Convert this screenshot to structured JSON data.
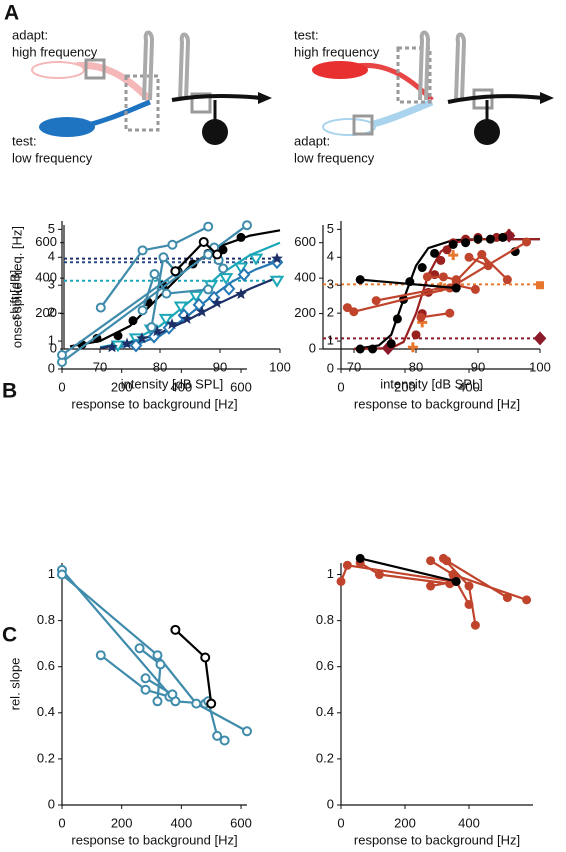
{
  "panel_labels": [
    "A",
    "B",
    "C"
  ],
  "diagrams": [
    {
      "labels": [
        "adapt:",
        "high frequency",
        "test:",
        "low frequency"
      ]
    },
    {
      "labels": [
        "test:",
        "high frequency",
        "adapt:",
        "low frequency"
      ]
    }
  ],
  "chart_data": [
    {
      "type": "line",
      "xlabel": "intensity [dB SPL]",
      "ylabel": "onset spike freq. [Hz]",
      "xlim": [
        64,
        100
      ],
      "ylim": [
        0,
        700
      ],
      "xticks": [
        70,
        80,
        90,
        100
      ],
      "yticks": [
        0,
        200,
        400,
        600
      ],
      "series": [
        {
          "color": "#1c2f66",
          "line": true,
          "dash": true,
          "x": [
            64,
            100
          ],
          "values": [
            510,
            510
          ]
        },
        {
          "color": "#2a4a8a",
          "line": true,
          "dash": true,
          "x": [
            64,
            100
          ],
          "values": [
            490,
            490
          ]
        },
        {
          "color": "#1aa7b8",
          "line": true,
          "dash": true,
          "x": [
            64,
            100
          ],
          "values": [
            385,
            385
          ]
        },
        {
          "color": "#000000",
          "line": true,
          "x": [
            65,
            70,
            75,
            80,
            85,
            90,
            95,
            100
          ],
          "values": [
            15,
            45,
            130,
            300,
            470,
            580,
            640,
            670
          ]
        },
        {
          "color": "#1aa7b8",
          "line": true,
          "x": [
            70,
            75,
            80,
            85,
            90,
            95,
            100
          ],
          "values": [
            10,
            40,
            130,
            270,
            420,
            530,
            600
          ]
        },
        {
          "color": "#2478b4",
          "line": true,
          "x": [
            72,
            76,
            80,
            84,
            88,
            92,
            96,
            100
          ],
          "values": [
            5,
            25,
            75,
            170,
            280,
            380,
            450,
            500
          ]
        },
        {
          "color": "#1c2f66",
          "line": true,
          "x": [
            70,
            75,
            80,
            85,
            90,
            95,
            100
          ],
          "values": [
            5,
            35,
            90,
            170,
            260,
            340,
            410
          ]
        },
        {
          "color": "#000000",
          "marker": "circle",
          "x": [
            67,
            69.5,
            73,
            75.5,
            78,
            80.5,
            83,
            85.5,
            88,
            90.5,
            93.5
          ],
          "values": [
            25,
            60,
            75,
            160,
            265,
            360,
            440,
            480,
            540,
            560,
            630
          ]
        },
        {
          "color": "#1aa7b8",
          "marker": "open-triangle",
          "x": [
            73,
            76,
            78.5,
            81,
            83.5,
            86,
            88.5,
            91,
            93.5,
            96,
            99.5
          ],
          "values": [
            20,
            60,
            110,
            170,
            240,
            300,
            360,
            400,
            460,
            510,
            385
          ]
        },
        {
          "color": "#2478b4",
          "marker": "open-diamond",
          "x": [
            76,
            79,
            81.5,
            84,
            86.5,
            89,
            91.5,
            94,
            99.5
          ],
          "values": [
            20,
            70,
            120,
            190,
            250,
            290,
            340,
            420,
            490
          ]
        },
        {
          "color": "#1c2f66",
          "marker": "star",
          "x": [
            72,
            74.5,
            77,
            79.5,
            82,
            84.5,
            87,
            89.5,
            93.5,
            99.5
          ],
          "values": [
            10,
            30,
            60,
            100,
            140,
            170,
            210,
            260,
            310,
            510
          ]
        }
      ]
    },
    {
      "type": "line",
      "xlabel": "intensity [dB SPL]",
      "xlim": [
        65,
        100
      ],
      "ylim": [
        0,
        700
      ],
      "xticks": [
        70,
        80,
        90,
        100
      ],
      "yticks": [
        0,
        200,
        400,
        600
      ],
      "series": [
        {
          "color": "#e8772e",
          "line": true,
          "dash": true,
          "x": [
            65,
            100
          ],
          "values": [
            365,
            365
          ]
        },
        {
          "color": "#8b1a2a",
          "line": true,
          "dash": true,
          "x": [
            65,
            100
          ],
          "values": [
            60,
            60
          ]
        },
        {
          "color": "#000000",
          "line": true,
          "x": [
            70,
            74,
            76,
            78,
            80,
            82,
            86,
            90,
            100
          ],
          "values": [
            0,
            20,
            80,
            280,
            470,
            570,
            615,
            620,
            620
          ]
        },
        {
          "color": "#9a1f1f",
          "line": true,
          "x": [
            70,
            76,
            78,
            80,
            82,
            84,
            86,
            90,
            100
          ],
          "values": [
            0,
            5,
            40,
            200,
            420,
            550,
            600,
            620,
            620
          ]
        },
        {
          "color": "#e8772e",
          "marker": "plus",
          "x": [
            79.5,
            81,
            84,
            86,
            90,
            95
          ],
          "values": [
            10,
            150,
            350,
            530,
            620,
            650
          ]
        },
        {
          "color": "#e8772e",
          "marker": "square",
          "x": [
            100
          ],
          "values": [
            360
          ]
        },
        {
          "color": "#8b1a2a",
          "marker": "diamond",
          "x": [
            75.5,
            100,
            95
          ],
          "values": [
            5,
            60,
            640
          ]
        },
        {
          "color": "#9a1f1f",
          "marker": "circle",
          "x": [
            80,
            81,
            82,
            83,
            84,
            85,
            86,
            88,
            90,
            93
          ],
          "values": [
            80,
            200,
            320,
            420,
            500,
            560,
            600,
            620,
            630,
            630
          ]
        },
        {
          "color": "#000000",
          "marker": "circle",
          "x": [
            71,
            73,
            76,
            77,
            78,
            79,
            81,
            83,
            86,
            88,
            90,
            92,
            94,
            96
          ],
          "values": [
            0,
            0,
            30,
            170,
            280,
            380,
            460,
            540,
            590,
            600,
            620,
            620,
            630,
            550
          ]
        }
      ]
    },
    {
      "type": "line",
      "xlabel": "response to background [Hz]",
      "ylabel": "shift [dB]",
      "xlim": [
        0,
        620
      ],
      "ylim": [
        0,
        5.3
      ],
      "xticks": [
        0,
        200,
        400,
        600
      ],
      "yticks": [
        0,
        1,
        2,
        3,
        4,
        5
      ],
      "series": [
        {
          "color": "#3f8bab",
          "marker": "open-circle",
          "line": true,
          "x": [
            0,
            620
          ],
          "values": [
            0.25,
            5.15
          ]
        },
        {
          "color": "#3f8bab",
          "marker": "open-circle",
          "line": true,
          "x": [
            0,
            385
          ],
          "values": [
            0.5,
            3.45
          ]
        },
        {
          "color": "#3f8bab",
          "marker": "open-circle",
          "line": true,
          "x": [
            130,
            270,
            370,
            490
          ],
          "values": [
            2.2,
            4.25,
            4.45,
            5.1
          ]
        },
        {
          "color": "#3f8bab",
          "marker": "open-circle",
          "line": true,
          "x": [
            270,
            310,
            350,
            490
          ],
          "values": [
            2.1,
            3.4,
            2.7,
            2.85
          ]
        },
        {
          "color": "#3f8bab",
          "marker": "open-circle",
          "line": true,
          "x": [
            300,
            340,
            380
          ],
          "values": [
            1.5,
            4.0,
            3.5
          ]
        },
        {
          "color": "#3f8bab",
          "marker": "open-circle",
          "line": true,
          "x": [
            490,
            510,
            540,
            525
          ],
          "values": [
            4.1,
            4.35,
            3.6,
            3.9
          ]
        },
        {
          "color": "#000000",
          "marker": "open-circle",
          "line": true,
          "x": [
            380,
            475,
            520
          ],
          "values": [
            3.5,
            4.55,
            4.1
          ]
        }
      ]
    },
    {
      "type": "line",
      "xlabel": "response to background [Hz]",
      "xlim": [
        0,
        600
      ],
      "ylim": [
        0,
        5.3
      ],
      "xticks": [
        0,
        200,
        400
      ],
      "yticks": [
        0,
        1,
        2,
        3,
        4,
        5
      ],
      "series": [
        {
          "color": "#c0432b",
          "marker": "circle",
          "line": true,
          "x": [
            20,
            40,
            360
          ],
          "values": [
            2.2,
            2.05,
            2.95
          ]
        },
        {
          "color": "#c0432b",
          "marker": "circle",
          "line": true,
          "x": [
            110,
            360,
            420
          ],
          "values": [
            2.45,
            3.0,
            2.85
          ]
        },
        {
          "color": "#c0432b",
          "marker": "circle",
          "line": true,
          "x": [
            250,
            340
          ],
          "values": [
            1.85,
            2.0
          ]
        },
        {
          "color": "#c0432b",
          "marker": "circle",
          "line": true,
          "x": [
            270,
            320,
            360
          ],
          "values": [
            3.3,
            3.3,
            3.2
          ]
        },
        {
          "color": "#c0432b",
          "marker": "circle",
          "line": true,
          "x": [
            360,
            440,
            520
          ],
          "values": [
            3.15,
            4.1,
            3.2
          ]
        },
        {
          "color": "#c0432b",
          "marker": "circle",
          "line": true,
          "x": [
            340,
            580
          ],
          "values": [
            2.9,
            4.55
          ]
        },
        {
          "color": "#c0432b",
          "marker": "circle",
          "line": true,
          "x": [
            400,
            460,
            440
          ],
          "values": [
            4.0,
            3.7,
            4.1
          ]
        },
        {
          "color": "#000000",
          "marker": "circle",
          "line": true,
          "x": [
            60,
            360
          ],
          "values": [
            3.2,
            2.9
          ]
        }
      ]
    },
    {
      "type": "line",
      "xlabel": "response to background [Hz]",
      "ylabel": "rel. slope",
      "xlim": [
        0,
        620
      ],
      "ylim": [
        0,
        1.05
      ],
      "xticks": [
        0,
        200,
        400,
        600
      ],
      "yticks": [
        0,
        0.2,
        0.4,
        0.6,
        0.8,
        1
      ],
      "series": [
        {
          "color": "#3f8bab",
          "marker": "open-circle",
          "line": true,
          "x": [
            0,
            380,
            480
          ],
          "values": [
            1.02,
            0.45,
            0.44
          ]
        },
        {
          "color": "#3f8bab",
          "marker": "open-circle",
          "line": true,
          "x": [
            0,
            320,
            450,
            620
          ],
          "values": [
            1.0,
            0.65,
            0.44,
            0.32
          ]
        },
        {
          "color": "#3f8bab",
          "marker": "open-circle",
          "line": true,
          "x": [
            130,
            280,
            360
          ],
          "values": [
            0.65,
            0.5,
            0.47
          ]
        },
        {
          "color": "#3f8bab",
          "marker": "open-circle",
          "line": true,
          "x": [
            260,
            330,
            320
          ],
          "values": [
            0.68,
            0.61,
            0.45
          ]
        },
        {
          "color": "#3f8bab",
          "marker": "open-circle",
          "line": true,
          "x": [
            280,
            370
          ],
          "values": [
            0.55,
            0.48
          ]
        },
        {
          "color": "#3f8bab",
          "marker": "open-circle",
          "line": true,
          "x": [
            490,
            520,
            545
          ],
          "values": [
            0.45,
            0.3,
            0.28
          ]
        },
        {
          "color": "#000000",
          "marker": "open-circle",
          "line": true,
          "x": [
            380,
            480,
            500
          ],
          "values": [
            0.76,
            0.64,
            0.44
          ]
        }
      ]
    },
    {
      "type": "line",
      "xlabel": "response to background [Hz]",
      "xlim": [
        0,
        600
      ],
      "ylim": [
        0,
        1.05
      ],
      "xticks": [
        0,
        200,
        400
      ],
      "yticks": [
        0,
        0.2,
        0.4,
        0.6,
        0.8,
        1
      ],
      "series": [
        {
          "color": "#c0432b",
          "marker": "circle",
          "line": true,
          "x": [
            0,
            20,
            350
          ],
          "values": [
            0.97,
            1.04,
            0.97
          ]
        },
        {
          "color": "#c0432b",
          "marker": "circle",
          "line": true,
          "x": [
            60,
            120,
            340
          ],
          "values": [
            1.05,
            1.0,
            0.96
          ]
        },
        {
          "color": "#c0432b",
          "marker": "circle",
          "line": true,
          "x": [
            280,
            350,
            580
          ],
          "values": [
            1.06,
            1.0,
            0.89
          ]
        },
        {
          "color": "#c0432b",
          "marker": "circle",
          "line": true,
          "x": [
            320,
            400,
            420
          ],
          "values": [
            1.07,
            0.95,
            0.78
          ]
        },
        {
          "color": "#c0432b",
          "marker": "circle",
          "line": true,
          "x": [
            330,
            520
          ],
          "values": [
            1.06,
            0.9
          ]
        },
        {
          "color": "#c0432b",
          "marker": "circle",
          "line": true,
          "x": [
            280,
            360,
            400
          ],
          "values": [
            0.95,
            0.97,
            0.87
          ]
        },
        {
          "color": "#000000",
          "marker": "circle",
          "line": true,
          "x": [
            60,
            360
          ],
          "values": [
            1.07,
            0.97
          ]
        }
      ]
    }
  ]
}
